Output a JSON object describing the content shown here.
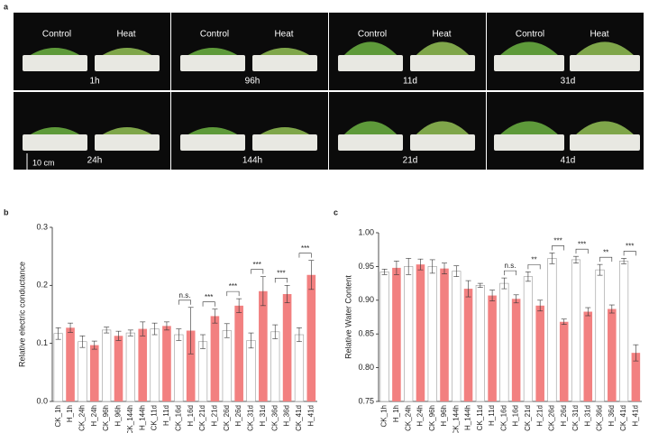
{
  "panel_labels": [
    "a",
    "b",
    "c"
  ],
  "photos": [
    {
      "labels": [
        "Control",
        "Heat"
      ],
      "time": "1h"
    },
    {
      "labels": [
        "Control",
        "Heat"
      ],
      "time": "96h"
    },
    {
      "labels": [
        "Control",
        "Heat"
      ],
      "time": "11d"
    },
    {
      "labels": [
        "Control",
        "Heat"
      ],
      "time": "31d"
    },
    {
      "labels": [],
      "time": "24h"
    },
    {
      "labels": [],
      "time": "144h"
    },
    {
      "labels": [],
      "time": "21d"
    },
    {
      "labels": [],
      "time": "41d"
    }
  ],
  "scale_bar": "10 cm",
  "chart_data": [
    {
      "type": "bar",
      "y_label": "Relative electric conductance",
      "categories": [
        "CK_1h",
        "H_1h",
        "CK_24h",
        "H_24h",
        "CK_96h",
        "H_96h",
        "CK_144h",
        "H_144h",
        "CK_11d",
        "H_11d",
        "CK_16d",
        "H_16d",
        "CK_21d",
        "H_21d",
        "CK_26d",
        "H_26d",
        "CK_31d",
        "H_31d",
        "CK_36d",
        "H_36d",
        "CK_41d",
        "H_41d"
      ],
      "values": [
        0.117,
        0.127,
        0.103,
        0.097,
        0.123,
        0.113,
        0.118,
        0.125,
        0.125,
        0.13,
        0.115,
        0.122,
        0.103,
        0.147,
        0.122,
        0.165,
        0.105,
        0.19,
        0.12,
        0.185,
        0.115,
        0.218
      ],
      "errors": [
        0.01,
        0.008,
        0.01,
        0.007,
        0.005,
        0.008,
        0.005,
        0.012,
        0.01,
        0.007,
        0.01,
        0.04,
        0.012,
        0.012,
        0.012,
        0.012,
        0.013,
        0.025,
        0.012,
        0.015,
        0.012,
        0.025
      ],
      "colors": [
        "#ffffff",
        "#f28080"
      ],
      "pair_labels": [
        null,
        null,
        null,
        null,
        null,
        "n.s.",
        "***",
        "***",
        "***",
        "***",
        "***"
      ],
      "ylim": [
        0,
        0.3
      ],
      "yticks": [
        {
          "value": 0,
          "label": "0.0"
        },
        0.1,
        0.2,
        0.3
      ]
    },
    {
      "type": "bar",
      "y_label": "Relative Water Content",
      "categories": [
        "CK_1h",
        "H_1h",
        "CK_24h",
        "H_24h",
        "CK_96h",
        "H_96h",
        "CK_144h",
        "H_144h",
        "CK_11d",
        "H_11d",
        "CK_16d",
        "H_16d",
        "CK_21d",
        "H_21d",
        "CK_26d",
        "H_26d",
        "CK_31d",
        "H_31d",
        "CK_36d",
        "H_36d",
        "CK_41d",
        "H_41d"
      ],
      "values": [
        0.942,
        0.948,
        0.95,
        0.953,
        0.95,
        0.947,
        0.943,
        0.917,
        0.922,
        0.907,
        0.925,
        0.902,
        0.935,
        0.892,
        0.962,
        0.868,
        0.96,
        0.883,
        0.945,
        0.887,
        0.958,
        0.822
      ],
      "errors": [
        0.004,
        0.01,
        0.012,
        0.008,
        0.01,
        0.008,
        0.008,
        0.012,
        0.003,
        0.008,
        0.008,
        0.006,
        0.007,
        0.008,
        0.008,
        0.004,
        0.005,
        0.006,
        0.008,
        0.006,
        0.004,
        0.012
      ],
      "colors": [
        "#ffffff",
        "#f28080"
      ],
      "pair_labels": [
        null,
        null,
        null,
        null,
        null,
        "n.s.",
        "**",
        "***",
        "***",
        "**",
        "***"
      ],
      "ylim": [
        0.75,
        1.0
      ],
      "yticks": [
        0.75,
        {
          "value": 0.8,
          "label": "0.80"
        },
        0.85,
        {
          "value": 0.9,
          "label": "0.90"
        },
        0.95,
        {
          "value": 1.0,
          "label": "1.00"
        }
      ]
    }
  ]
}
